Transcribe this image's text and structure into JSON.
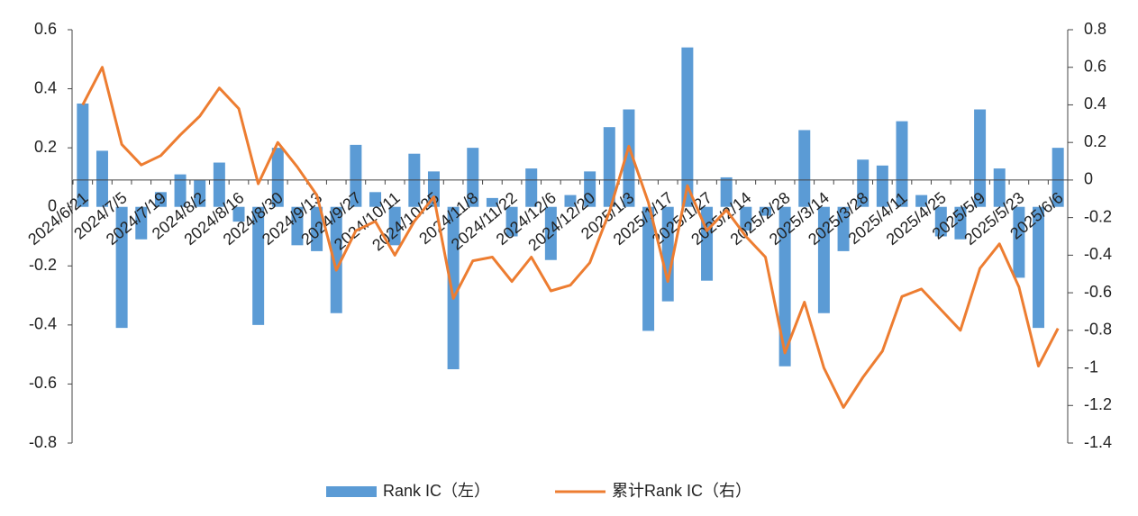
{
  "chart_data": {
    "type": "bar",
    "categories": [
      "2024/6/21",
      null,
      "2024/7/5",
      null,
      "2024/7/19",
      null,
      "2024/8/2",
      null,
      "2024/8/16",
      null,
      "2024/8/30",
      null,
      "2024/9/13",
      null,
      "2024/9/27",
      null,
      "2024/10/11",
      null,
      "2024/10/25",
      null,
      "2024/11/8",
      null,
      "2024/11/22",
      null,
      "2024/12/6",
      null,
      "2024/12/20",
      null,
      "2025/1/3",
      null,
      "2025/1/17",
      null,
      "2025/1/27",
      null,
      "2025/2/14",
      null,
      "2025/2/28",
      null,
      "2025/3/14",
      null,
      "2025/3/28",
      null,
      "2025/4/11",
      null,
      "2025/4/25",
      null,
      "2025/5/9",
      null,
      "2025/5/23",
      null,
      "2025/6/6"
    ],
    "series": [
      {
        "name": "Rank IC（左）",
        "type": "bar",
        "color": "#5b9bd5",
        "values": [
          0.35,
          0.19,
          -0.41,
          -0.11,
          0.05,
          0.11,
          0.09,
          0.15,
          -0.05,
          -0.4,
          0.2,
          -0.13,
          -0.15,
          -0.36,
          0.21,
          0.05,
          -0.13,
          0.18,
          0.12,
          -0.55,
          0.2,
          0.03,
          -0.1,
          0.13,
          -0.18,
          0.04,
          0.12,
          0.27,
          0.33,
          -0.42,
          -0.32,
          0.54,
          -0.25,
          0.1,
          -0.08,
          -0.03,
          -0.54,
          0.26,
          -0.36,
          -0.15,
          0.16,
          0.14,
          0.29,
          0.04,
          -0.1,
          -0.11,
          0.33,
          0.13,
          -0.24,
          -0.41,
          0.2
        ]
      },
      {
        "name": "累计Rank IC（右）",
        "type": "line",
        "axis": "y2",
        "color": "#ed7d31",
        "values": [
          0.4,
          0.6,
          0.19,
          0.08,
          0.13,
          0.24,
          0.34,
          0.49,
          0.38,
          -0.02,
          0.2,
          0.07,
          -0.08,
          -0.48,
          -0.27,
          -0.22,
          -0.4,
          -0.22,
          -0.09,
          -0.63,
          -0.43,
          -0.41,
          -0.54,
          -0.41,
          -0.59,
          -0.56,
          -0.44,
          -0.17,
          0.18,
          -0.12,
          -0.54,
          -0.03,
          -0.27,
          -0.16,
          -0.3,
          -0.41,
          -0.92,
          -0.65,
          -1.0,
          -1.21,
          -1.05,
          -0.91,
          -0.62,
          -0.58,
          -0.69,
          -0.8,
          -0.47,
          -0.34,
          -0.57,
          -0.99,
          -0.79
        ]
      }
    ],
    "ylim": [
      -0.8,
      0.6
    ],
    "yticks": [
      0.6,
      0.4,
      0.2,
      0,
      -0.2,
      -0.4,
      -0.6,
      -0.8
    ],
    "y2lim": [
      -1.4,
      0.8
    ],
    "y2ticks": [
      0.8,
      0.6,
      0.4,
      0.2,
      0,
      -0.2,
      -0.4,
      -0.6,
      -0.8,
      -1,
      -1.2,
      -1.4
    ],
    "legend": "bottom"
  }
}
